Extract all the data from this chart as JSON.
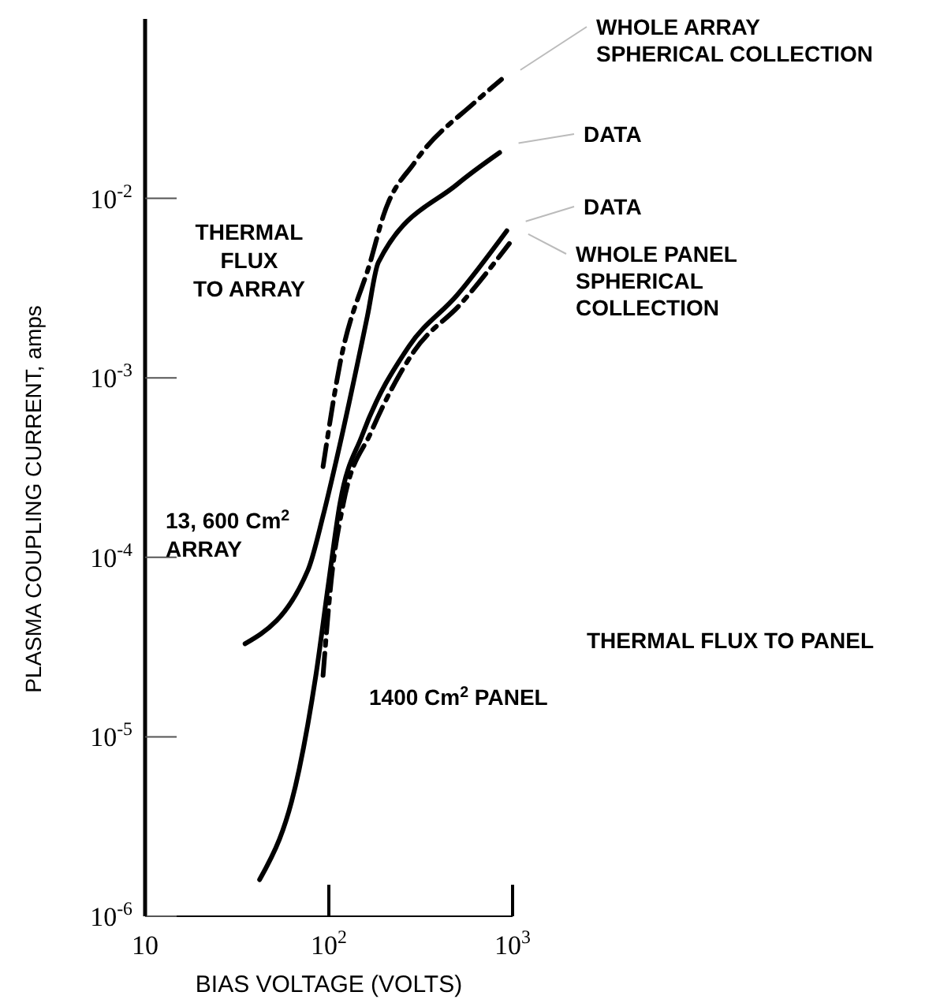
{
  "chart_data": {
    "type": "line",
    "xlabel": "BIAS VOLTAGE (VOLTS)",
    "ylabel": "PLASMA COUPLING CURRENT, amps",
    "log": "xy",
    "grid": false,
    "xlim": [
      10,
      1000
    ],
    "xticks": [
      10,
      {
        "value": 100,
        "label": "10$^{2}$"
      },
      {
        "value": 1000,
        "label": "10$^{3}$"
      }
    ],
    "ylim": [
      1e-06,
      0.1
    ],
    "yticks": [
      {
        "value": 1e-06,
        "label": "10$^{-6}$"
      },
      {
        "value": 1e-05,
        "label": "10$^{-5}$"
      },
      {
        "value": 0.0001,
        "label": "10$^{-4}$"
      },
      {
        "value": 0.001,
        "label": "10$^{-3}$"
      },
      {
        "value": 0.01,
        "label": "10$^{-2}$"
      }
    ],
    "series": [
      {
        "name": "WHOLE ARRAY\nSPHERICAL COLLECTION",
        "color": "#000000",
        "line_style": "dashed",
        "x": [
          93,
          115,
          170,
          198,
          295,
          617,
          870
        ],
        "values": [
          0.00032,
          0.0012,
          0.0046,
          0.008,
          0.016,
          0.034,
          0.046
        ]
      },
      {
        "name": "DATA",
        "color": "#000000",
        "line_style": "solid",
        "x": [
          35,
          77,
          93,
          110,
          162,
          186,
          500,
          850
        ],
        "values": [
          3.3e-05,
          8.5e-05,
          0.00017,
          0.00035,
          0.0022,
          0.0044,
          0.012,
          0.018
        ]
      },
      {
        "name": "DATA",
        "color": "#000000",
        "line_style": "solid",
        "x": [
          42,
          69,
          85,
          100,
          115,
          152,
          273,
          500,
          930
        ],
        "values": [
          1.6e-06,
          6.6e-06,
          2.2e-05,
          7.4e-05,
          0.0002,
          0.00048,
          0.0015,
          0.0029,
          0.0066
        ]
      },
      {
        "name": "WHOLE PANEL\nSPHERICAL\nCOLLECTION",
        "color": "#000000",
        "line_style": "dashed",
        "x": [
          93,
          103,
          120,
          170,
          290,
          525,
          960
        ],
        "values": [
          2.2e-05,
          7.4e-05,
          0.0002,
          0.0005,
          0.0014,
          0.0026,
          0.0056
        ]
      }
    ],
    "annotations": [
      "THERMAL\nFLUX\nTO ARRAY",
      "13, 600 Cm$^{2}$\nARRAY",
      "THERMAL FLUX TO PANEL",
      "1400 Cm$^{2}$ PANEL"
    ]
  }
}
